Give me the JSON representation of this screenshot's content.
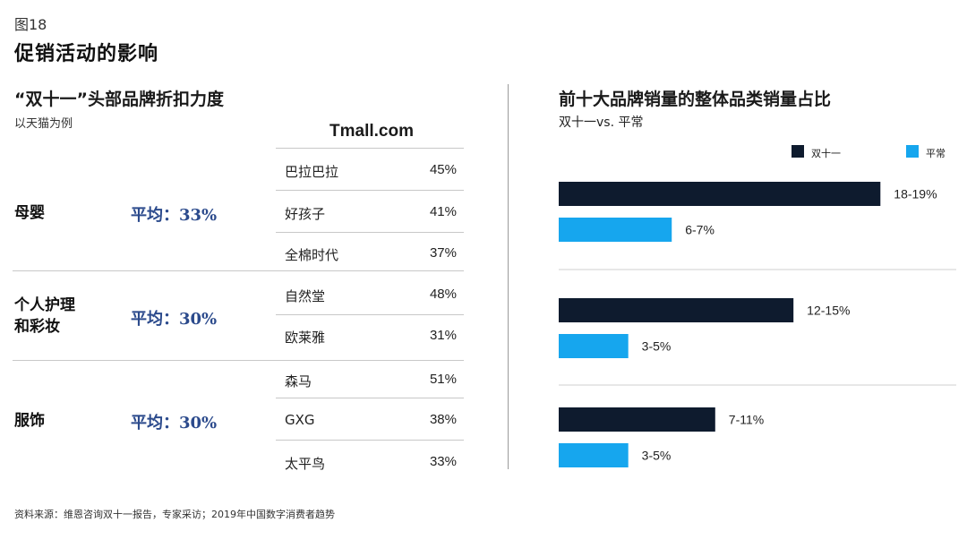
{
  "figure_label": "图18",
  "page_title": "促销活动的影响",
  "left_panel": {
    "title": "“双十一”头部品牌折扣力度",
    "subtitle": "以天猫为例",
    "store_label": "Tmall.com",
    "groups": [
      {
        "category": "母婴",
        "average": "平均：33%",
        "brands": [
          {
            "name": "巴拉巴拉",
            "discount": "45%"
          },
          {
            "name": "好孩子",
            "discount": "41%"
          },
          {
            "name": "全棉时代",
            "discount": "37%"
          }
        ]
      },
      {
        "category_line1": "个人护理",
        "category_line2": "和彩妆",
        "average": "平均：30%",
        "brands": [
          {
            "name": "自然堂",
            "discount": "48%"
          },
          {
            "name": "欧莱雅",
            "discount": "31%"
          }
        ]
      },
      {
        "category": "服饰",
        "average": "平均：30%",
        "brands": [
          {
            "name": "森马",
            "discount": "51%"
          },
          {
            "name": "GXG",
            "discount": "38%"
          },
          {
            "name": "太平鸟",
            "discount": "33%"
          }
        ]
      }
    ]
  },
  "right_panel": {
    "title": "前十大品牌销量的整体品类销量占比",
    "subtitle": "双十一vs. 平常",
    "legend": [
      {
        "label": "双十一",
        "color": "#0e1b2e"
      },
      {
        "label": "平常",
        "color": "#16a6ee"
      }
    ]
  },
  "chart_data": {
    "type": "bar",
    "orientation": "horizontal",
    "categories": [
      "母婴",
      "个人护理和彩妆",
      "服饰"
    ],
    "series": [
      {
        "name": "双十一",
        "color": "#0e1b2e",
        "values": [
          18.5,
          13.5,
          9
        ],
        "labels": [
          "18-19%",
          "12-15%",
          "7-11%"
        ]
      },
      {
        "name": "平常",
        "color": "#16a6ee",
        "values": [
          6.5,
          4,
          4
        ],
        "labels": [
          "6-7%",
          "3-5%",
          "3-5%"
        ]
      }
    ],
    "xlim": [
      0,
      19
    ],
    "grid": false,
    "legend_position": "top-right"
  },
  "footnote": "资料来源：维恩咨询双十一报告，专家采访；2019年中国数字消费者趋势"
}
